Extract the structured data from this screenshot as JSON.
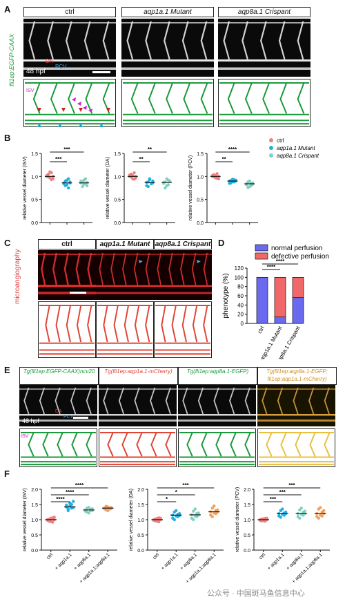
{
  "panels": {
    "A": {
      "label": "A",
      "headers": [
        "ctrl",
        "aqp1a.1 Mutant",
        "aqp8a.1 Crispant"
      ],
      "side_label": "fli1ep:EGFP-CAAX",
      "stage": "48 hpf",
      "vessel_labels": {
        "da": "DA",
        "pcv": "PCV",
        "isv": "ISV"
      },
      "colors": {
        "schematic": "#1a9a3a",
        "arrow_da": "#d42020",
        "arrow_pcv": "#20a0d8",
        "arrow_isv": "#d020d0"
      }
    },
    "B": {
      "label": "B"
    },
    "C": {
      "label": "C",
      "headers": [
        "ctrl",
        "aqp1a.1 Mutant",
        "aqp8a.1 Crispant"
      ],
      "side_label": "microangiography",
      "colors": {
        "schematic": "#e04535",
        "arrow": "#4aa0e0"
      }
    },
    "D": {
      "label": "D"
    },
    "E": {
      "label": "E",
      "headers": [
        "Tg(fli1ep:EGFP-CAAX)ncv20",
        "Tg(fli1ep:aqp1a.1-mCherry)",
        "Tg(fli1ep:aqp8a.1-EGFP)",
        "Tg(fli1ep:aqp8a.1-EGFP; fli1ep:aqp1a.1-mCherry)"
      ],
      "stage": "48 hpf",
      "vessel_labels": {
        "da": "DA",
        "pcv": "PCV",
        "isv": "ISV"
      },
      "colors": [
        "#1a9a3a",
        "#e04535",
        "#1a9a3a",
        "#e8c040"
      ]
    },
    "F": {
      "label": "F"
    }
  },
  "chart_data": [
    {
      "id": "B-ISV",
      "type": "scatter",
      "ylabel": "relative vessel diameter (ISV)",
      "ylim": [
        0,
        1.5
      ],
      "yticks": [
        0.0,
        0.5,
        1.0,
        1.5
      ],
      "categories": [
        "ctrl",
        "aqp1a.1 Mutant",
        "aqp8a.1 Crispant"
      ],
      "colors": [
        "#f08080",
        "#20b0e0",
        "#80d0c0"
      ],
      "means": [
        1.0,
        0.86,
        0.86
      ],
      "points": [
        [
          1.0,
          1.05,
          0.97,
          1.08,
          0.95,
          1.02,
          0.99,
          1.1,
          0.93,
          1.0
        ],
        [
          0.86,
          0.8,
          0.92,
          0.75,
          0.88,
          0.84,
          0.9,
          0.82,
          0.95,
          0.86
        ],
        [
          0.86,
          0.78,
          0.92,
          0.85,
          0.8,
          0.9,
          0.88,
          0.83,
          0.95,
          0.87
        ]
      ],
      "significance": [
        {
          "from": 0,
          "to": 2,
          "label": "***"
        },
        {
          "from": 0,
          "to": 1,
          "label": "***"
        }
      ]
    },
    {
      "id": "B-DA",
      "type": "scatter",
      "ylabel": "relative vessel diameter (DA)",
      "ylim": [
        0,
        1.5
      ],
      "yticks": [
        0.0,
        0.5,
        1.0,
        1.5
      ],
      "categories": [
        "ctrl",
        "aqp1a.1 Mutant",
        "aqp8a.1 Crispant"
      ],
      "colors": [
        "#f08080",
        "#20b0e0",
        "#80d0c0"
      ],
      "means": [
        1.0,
        0.87,
        0.87
      ],
      "points": [
        [
          1.0,
          1.05,
          0.95,
          1.08,
          0.97,
          1.03,
          0.99,
          1.02,
          0.94,
          1.0
        ],
        [
          0.87,
          0.78,
          0.95,
          0.84,
          0.9,
          0.8,
          0.88,
          0.93,
          0.85,
          0.86
        ],
        [
          0.87,
          0.75,
          0.95,
          0.82,
          0.9,
          0.85,
          0.88,
          0.8,
          0.92,
          0.9
        ]
      ],
      "significance": [
        {
          "from": 0,
          "to": 2,
          "label": "**"
        },
        {
          "from": 0,
          "to": 1,
          "label": "**"
        }
      ]
    },
    {
      "id": "B-PCV",
      "type": "scatter",
      "ylabel": "relative vessel diameter (PCV)",
      "ylim": [
        0,
        1.5
      ],
      "yticks": [
        0.0,
        0.5,
        1.0,
        1.5
      ],
      "categories": [
        "ctrl",
        "aqp1a.1 Mutant",
        "aqp8a.1 Crispant"
      ],
      "colors": [
        "#f08080",
        "#20b0e0",
        "#80d0c0"
      ],
      "means": [
        1.0,
        0.9,
        0.84
      ],
      "points": [
        [
          1.0,
          1.04,
          0.97,
          1.06,
          0.95,
          1.02,
          0.99,
          1.01,
          0.96,
          1.0
        ],
        [
          0.9,
          0.86,
          0.94,
          0.88,
          0.92,
          0.85,
          0.91,
          0.89,
          0.93,
          0.9
        ],
        [
          0.84,
          0.76,
          0.9,
          0.8,
          0.86,
          0.82,
          0.88,
          0.78,
          0.85,
          0.83
        ]
      ],
      "significance": [
        {
          "from": 0,
          "to": 2,
          "label": "****"
        },
        {
          "from": 0,
          "to": 1,
          "label": "**"
        }
      ],
      "legend": [
        "ctrl",
        "aqp1a.1 Mutant",
        "aqp8a.1 Crispant"
      ]
    },
    {
      "id": "D",
      "type": "bar",
      "ylabel": "phenotype (%)",
      "ylim": [
        0,
        120
      ],
      "yticks": [
        0,
        20,
        40,
        60,
        80,
        100,
        120
      ],
      "categories": [
        "ctrl",
        "aqp1a.1 Mutant",
        "aqp8a.1 Crispant"
      ],
      "series": [
        {
          "name": "normal perfusion",
          "values": [
            100,
            14,
            56
          ],
          "color": "#6a6af0"
        },
        {
          "name": "defective perfusion",
          "values": [
            0,
            86,
            44
          ],
          "color": "#f06868"
        }
      ],
      "significance": [
        {
          "from": 0,
          "to": 2,
          "label": "****"
        },
        {
          "from": 0,
          "to": 1,
          "label": "****"
        }
      ]
    },
    {
      "id": "F-ISV",
      "type": "scatter",
      "ylabel": "relative vessel diameter (ISV)",
      "ylim": [
        0,
        2.0
      ],
      "yticks": [
        0.0,
        0.5,
        1.0,
        1.5,
        2.0
      ],
      "categories": [
        "ctrl",
        "+ aqp1a.1",
        "+ aqp8a.1",
        "+ aqp1a.1;aqp8a.1"
      ],
      "colors": [
        "#f08080",
        "#20b0e0",
        "#80d0c0",
        "#f0a060"
      ],
      "means": [
        1.0,
        1.42,
        1.32,
        1.38
      ],
      "points": [
        [
          1.0,
          0.95,
          1.05,
          0.92,
          1.08,
          0.98,
          1.02,
          0.94,
          1.06,
          1.0
        ],
        [
          1.42,
          1.3,
          1.55,
          1.38,
          1.6,
          1.48,
          1.35,
          1.45,
          1.5,
          1.4
        ],
        [
          1.32,
          1.25,
          1.4,
          1.3,
          1.36,
          1.28,
          1.38,
          1.22,
          1.34,
          1.3
        ],
        [
          1.38,
          1.32,
          1.42,
          1.35,
          1.4,
          1.36,
          1.44,
          1.3,
          1.39,
          1.37
        ]
      ],
      "significance": [
        {
          "from": 0,
          "to": 3,
          "label": "****"
        },
        {
          "from": 0,
          "to": 2,
          "label": "****"
        },
        {
          "from": 0,
          "to": 1,
          "label": "****"
        }
      ]
    },
    {
      "id": "F-DA",
      "type": "scatter",
      "ylabel": "relative vessel diameter (DA)",
      "ylim": [
        0,
        2.0
      ],
      "yticks": [
        0.0,
        0.5,
        1.0,
        1.5,
        2.0
      ],
      "categories": [
        "ctrl",
        "+ aqp1a.1",
        "+ aqp8a.1",
        "+ aqp1a.1;aqp8a.1"
      ],
      "colors": [
        "#f08080",
        "#20b0e0",
        "#80d0c0",
        "#f0a060"
      ],
      "means": [
        1.0,
        1.15,
        1.16,
        1.26
      ],
      "points": [
        [
          1.0,
          0.96,
          1.04,
          0.93,
          1.05,
          0.98,
          1.02,
          0.95,
          1.06,
          1.0
        ],
        [
          1.15,
          1.0,
          1.3,
          1.1,
          1.2,
          1.05,
          1.25,
          1.12,
          1.18,
          1.14
        ],
        [
          1.16,
          1.0,
          1.35,
          1.1,
          1.22,
          1.05,
          1.28,
          1.12,
          1.2,
          1.15
        ],
        [
          1.26,
          1.1,
          1.45,
          1.2,
          1.32,
          1.15,
          1.38,
          1.22,
          1.3,
          1.25
        ]
      ],
      "significance": [
        {
          "from": 0,
          "to": 3,
          "label": "***"
        },
        {
          "from": 0,
          "to": 2,
          "label": "*"
        },
        {
          "from": 0,
          "to": 1,
          "label": "*"
        }
      ]
    },
    {
      "id": "F-PCV",
      "type": "scatter",
      "ylabel": "relative vessel diameter (PCV)",
      "ylim": [
        0,
        2.0
      ],
      "yticks": [
        0.0,
        0.5,
        1.0,
        1.5,
        2.0
      ],
      "categories": [
        "ctrl",
        "+ aqp1a.1",
        "+ aqp8a.1",
        "+ aqp1a.1;aqp8a.1"
      ],
      "colors": [
        "#f08080",
        "#20b0e0",
        "#80d0c0",
        "#f0a060"
      ],
      "means": [
        1.0,
        1.2,
        1.2,
        1.2
      ],
      "points": [
        [
          1.0,
          0.96,
          1.03,
          0.95,
          1.05,
          0.98,
          1.02,
          0.97,
          1.04,
          1.0
        ],
        [
          1.2,
          1.08,
          1.35,
          1.15,
          1.25,
          1.12,
          1.3,
          1.18,
          1.22,
          1.2
        ],
        [
          1.2,
          1.05,
          1.38,
          1.15,
          1.28,
          1.1,
          1.32,
          1.18,
          1.24,
          1.2
        ],
        [
          1.2,
          1.05,
          1.4,
          1.12,
          1.3,
          1.1,
          1.35,
          1.15,
          1.25,
          1.2
        ]
      ],
      "significance": [
        {
          "from": 0,
          "to": 3,
          "label": "***"
        },
        {
          "from": 0,
          "to": 2,
          "label": "***"
        },
        {
          "from": 0,
          "to": 1,
          "label": "***"
        }
      ]
    }
  ],
  "watermark": "公众号 · 中国斑马鱼信息中心"
}
